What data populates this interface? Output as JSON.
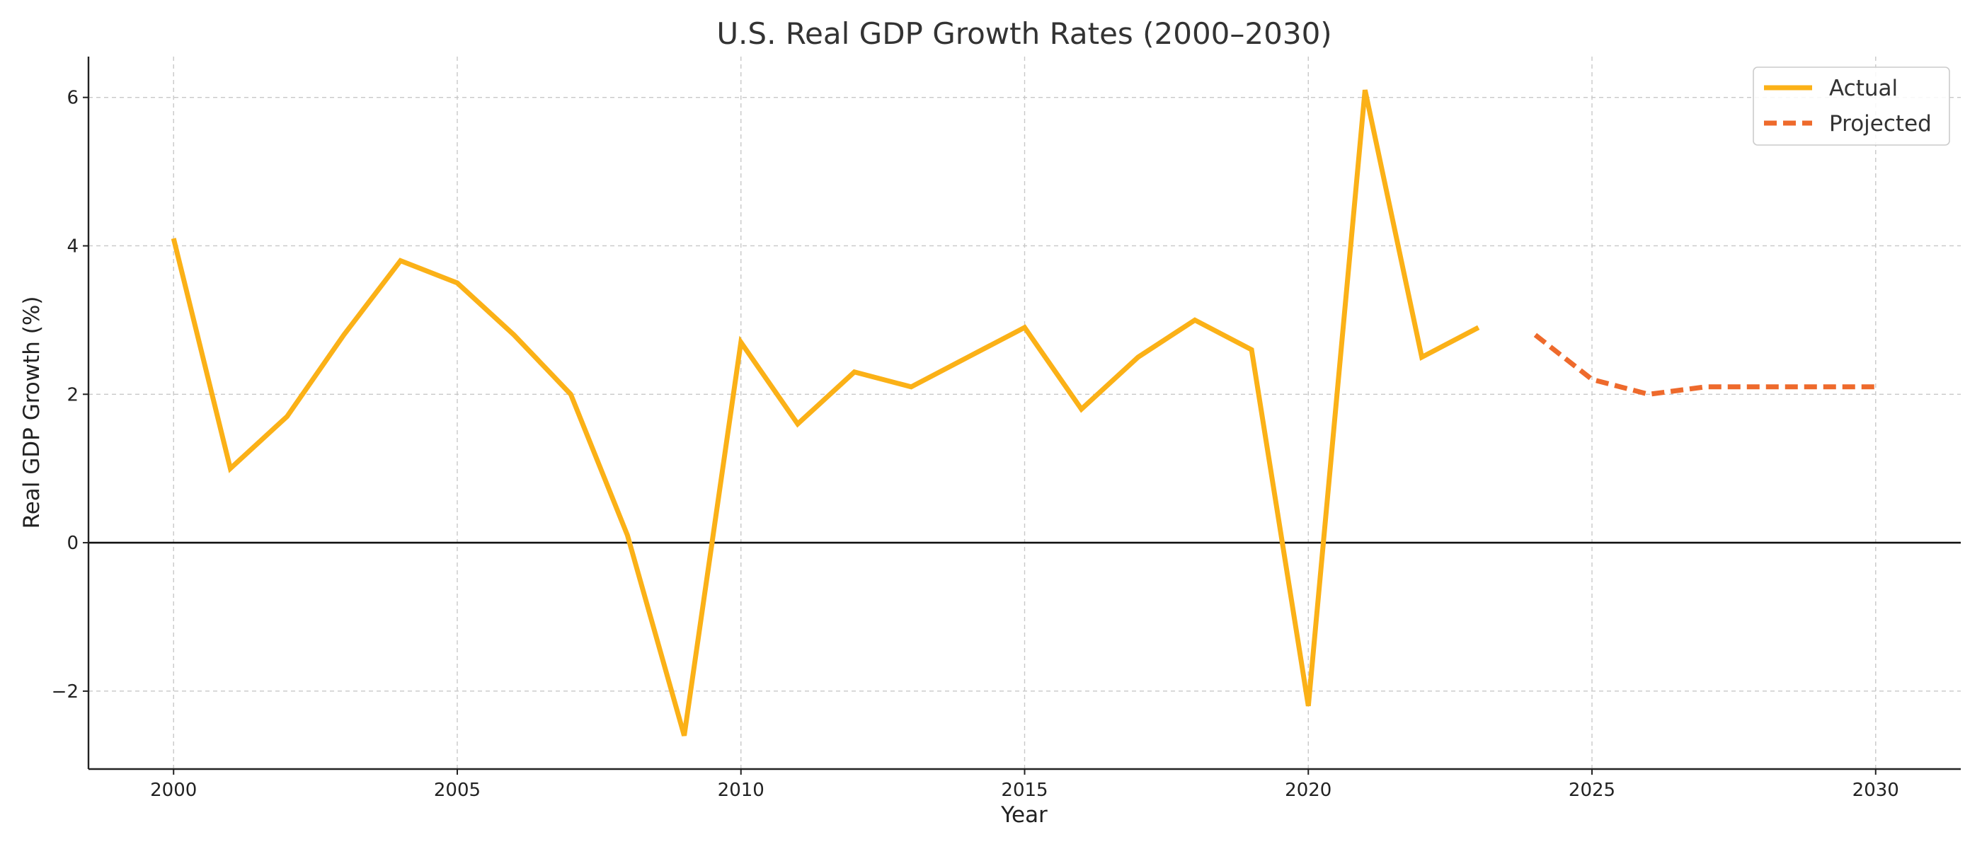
{
  "chart_data": {
    "type": "line",
    "title": "U.S. Real GDP Growth Rates (2000–2030)",
    "xlabel": "Year",
    "ylabel": "Real GDP Growth (%)",
    "xlim": [
      1998.5,
      2031.5
    ],
    "ylim": [
      -3.05,
      6.55
    ],
    "x_ticks": [
      2000,
      2005,
      2010,
      2015,
      2020,
      2025,
      2030
    ],
    "y_ticks": [
      -2,
      0,
      2,
      4,
      6
    ],
    "y_tick_labels": [
      "−2",
      "0",
      "2",
      "4",
      "6"
    ],
    "grid": true,
    "zero_line": true,
    "legend_position": "top-right",
    "series": [
      {
        "name": "Actual",
        "style": "solid",
        "color": "#FBB117",
        "x": [
          2000,
          2001,
          2002,
          2003,
          2004,
          2005,
          2006,
          2007,
          2008,
          2009,
          2010,
          2011,
          2012,
          2013,
          2014,
          2015,
          2016,
          2017,
          2018,
          2019,
          2020,
          2021,
          2022,
          2023
        ],
        "values": [
          4.1,
          1.0,
          1.7,
          2.8,
          3.8,
          3.5,
          2.8,
          2.0,
          0.1,
          -2.6,
          2.7,
          1.6,
          2.3,
          2.1,
          2.5,
          2.9,
          1.8,
          2.5,
          3.0,
          2.6,
          -2.2,
          6.1,
          2.5,
          2.9
        ]
      },
      {
        "name": "Projected",
        "style": "dashed",
        "color": "#EE6A2C",
        "x": [
          2024,
          2025,
          2026,
          2027,
          2028,
          2029,
          2030
        ],
        "values": [
          2.8,
          2.2,
          2.0,
          2.1,
          2.1,
          2.1,
          2.1
        ]
      }
    ]
  }
}
